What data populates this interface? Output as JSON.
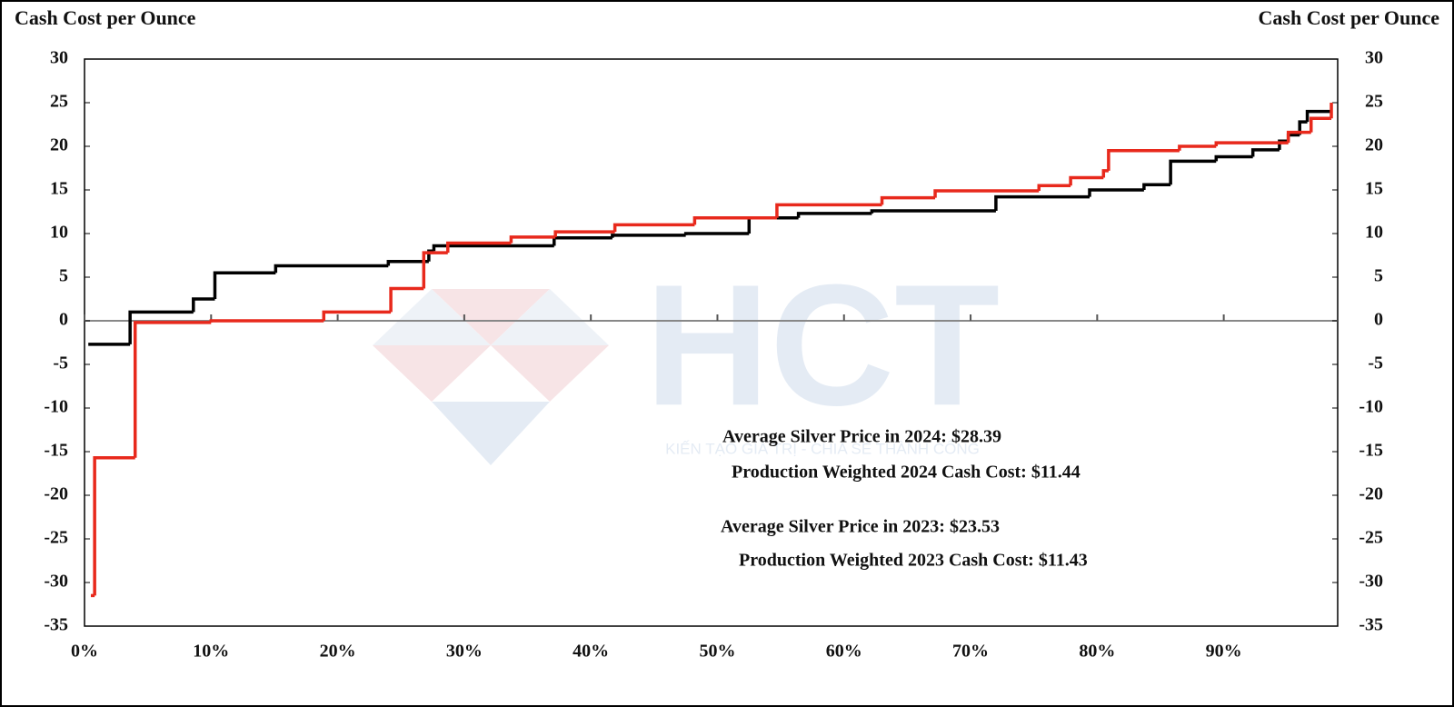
{
  "chart_data": {
    "type": "step",
    "y_axis_label": "Cash Cost per Ounce",
    "y2_axis_label": "Cash Cost per Ounce",
    "xlim": [
      0,
      99
    ],
    "xticks": [
      {
        "value": 0,
        "label": "0%"
      },
      {
        "value": 10,
        "label": "10%"
      },
      {
        "value": 20,
        "label": "20%"
      },
      {
        "value": 30,
        "label": "30%"
      },
      {
        "value": 40,
        "label": "40%"
      },
      {
        "value": 50,
        "label": "50%"
      },
      {
        "value": 60,
        "label": "60%"
      },
      {
        "value": 70,
        "label": "70%"
      },
      {
        "value": 80,
        "label": "80%"
      },
      {
        "value": 90,
        "label": "90%"
      }
    ],
    "ylim": [
      -35,
      30
    ],
    "yticks": [
      -35,
      -30,
      -25,
      -20,
      -15,
      -10,
      -5,
      0,
      5,
      10,
      15,
      20,
      25,
      30
    ],
    "y2lim": [
      -35,
      30
    ],
    "y2ticks": [
      -35,
      -30,
      -25,
      -20,
      -15,
      -10,
      -5,
      0,
      5,
      10,
      15,
      20,
      25,
      30
    ],
    "series": [
      {
        "color": "#000000",
        "x": [
          0.3,
          3.6,
          8.6,
          10.3,
          15.1,
          24.0,
          27.2,
          27.6,
          37.1,
          41.7,
          47.5,
          52.5,
          56.4,
          62.2,
          72.0,
          79.4,
          83.7,
          85.8,
          89.4,
          92.3,
          94.4,
          95.1,
          96.0,
          96.6,
          98.4
        ],
        "values": [
          -2.7,
          1.0,
          2.5,
          5.5,
          6.3,
          6.8,
          8.0,
          8.6,
          9.5,
          9.8,
          10.0,
          11.8,
          12.3,
          12.6,
          14.2,
          15.0,
          15.6,
          18.3,
          18.8,
          19.6,
          20.6,
          21.3,
          22.8,
          24.0,
          24.0
        ]
      },
      {
        "color": "#e8291c",
        "x": [
          0.5,
          0.8,
          4.0,
          10.0,
          18.9,
          24.2,
          26.8,
          28.7,
          33.7,
          37.2,
          41.9,
          48.2,
          54.7,
          63.0,
          67.2,
          75.4,
          77.9,
          80.5,
          80.9,
          86.5,
          89.4,
          95.1,
          96.9,
          98.4,
          98.5
        ],
        "values": [
          -31.5,
          -15.7,
          -0.2,
          0.0,
          1.0,
          3.7,
          7.8,
          8.9,
          9.6,
          10.2,
          11.0,
          11.8,
          13.3,
          14.1,
          14.9,
          15.5,
          16.4,
          17.2,
          19.5,
          20.0,
          20.4,
          21.6,
          23.2,
          23.2,
          25.0
        ]
      }
    ],
    "annotations": [
      "Average Silver Price in 2024: $28.39",
      "Production Weighted 2024 Cash Cost: $11.44",
      "Average Silver Price in 2023: $23.53",
      "Production Weighted 2023 Cash Cost: $11.43"
    ],
    "watermark": {
      "logo": "HCT",
      "tagline": "KIẾN TẠO GIÁ TRỊ - CHIA SẺ THÀNH CÔNG"
    }
  }
}
